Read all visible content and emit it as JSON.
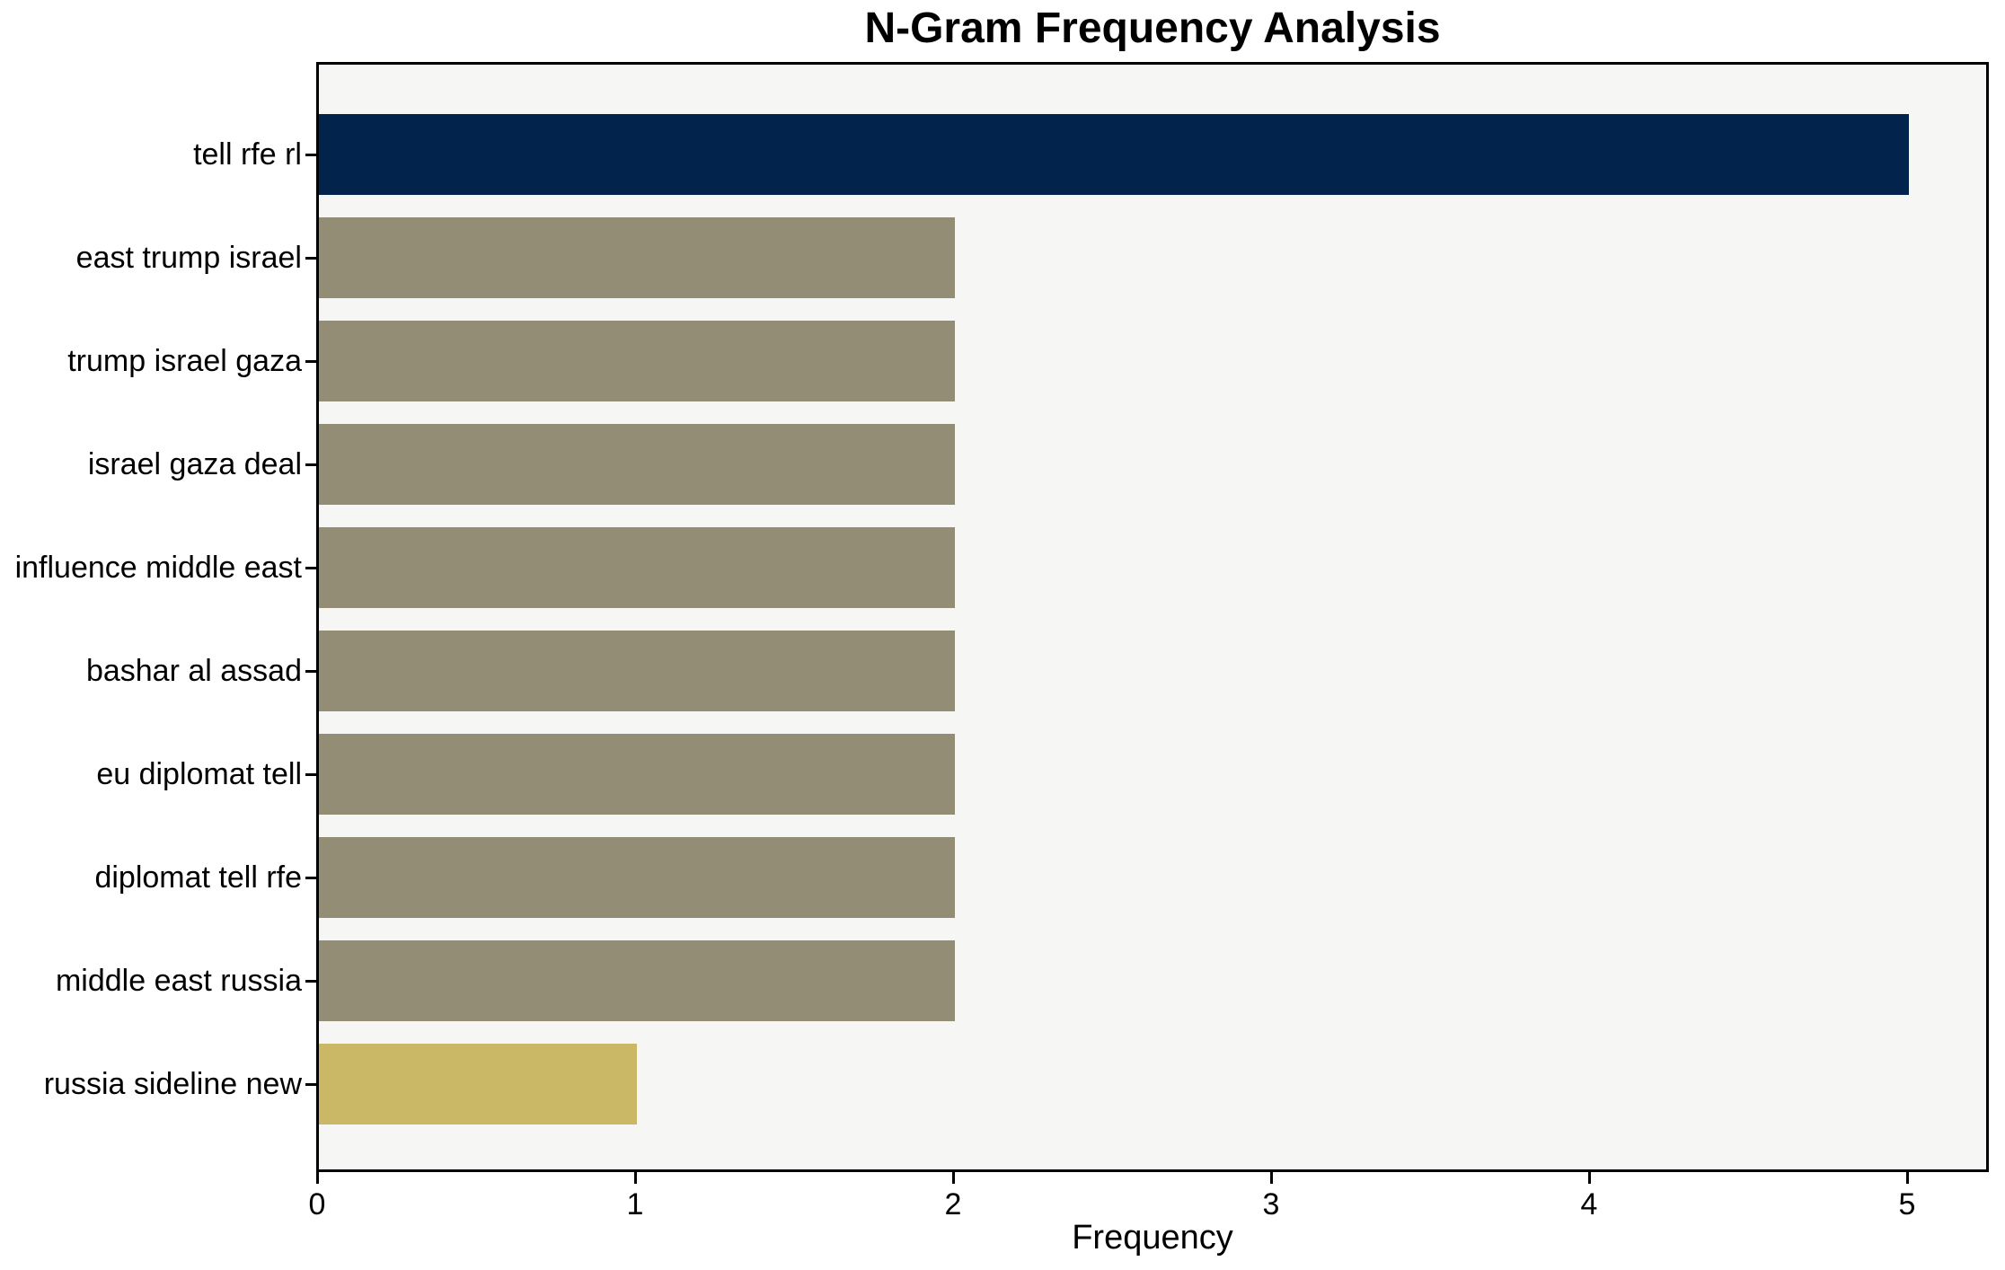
{
  "title": "N-Gram Frequency Analysis",
  "chart_data": {
    "type": "bar",
    "orientation": "horizontal",
    "title": "N-Gram Frequency Analysis",
    "xlabel": "Frequency",
    "ylabel": "",
    "categories": [
      "tell rfe rl",
      "east trump israel",
      "trump israel gaza",
      "israel gaza deal",
      "influence middle east",
      "bashar al assad",
      "eu diplomat tell",
      "diplomat tell rfe",
      "middle east russia",
      "russia sideline new"
    ],
    "values": [
      5,
      2,
      2,
      2,
      2,
      2,
      2,
      2,
      2,
      1
    ],
    "bar_colors": [
      "#02234c",
      "#938d76",
      "#938d76",
      "#938d76",
      "#938d76",
      "#938d76",
      "#938d76",
      "#938d76",
      "#938d76",
      "#cab867"
    ],
    "xticks": [
      0,
      1,
      2,
      3,
      4,
      5
    ],
    "xlim": [
      0,
      5.27
    ],
    "grid": false,
    "legend": null,
    "plot_background": "#f6f6f5",
    "figure_background": "#ffffff",
    "spine_color": "#000000",
    "text_color": "#000000"
  }
}
